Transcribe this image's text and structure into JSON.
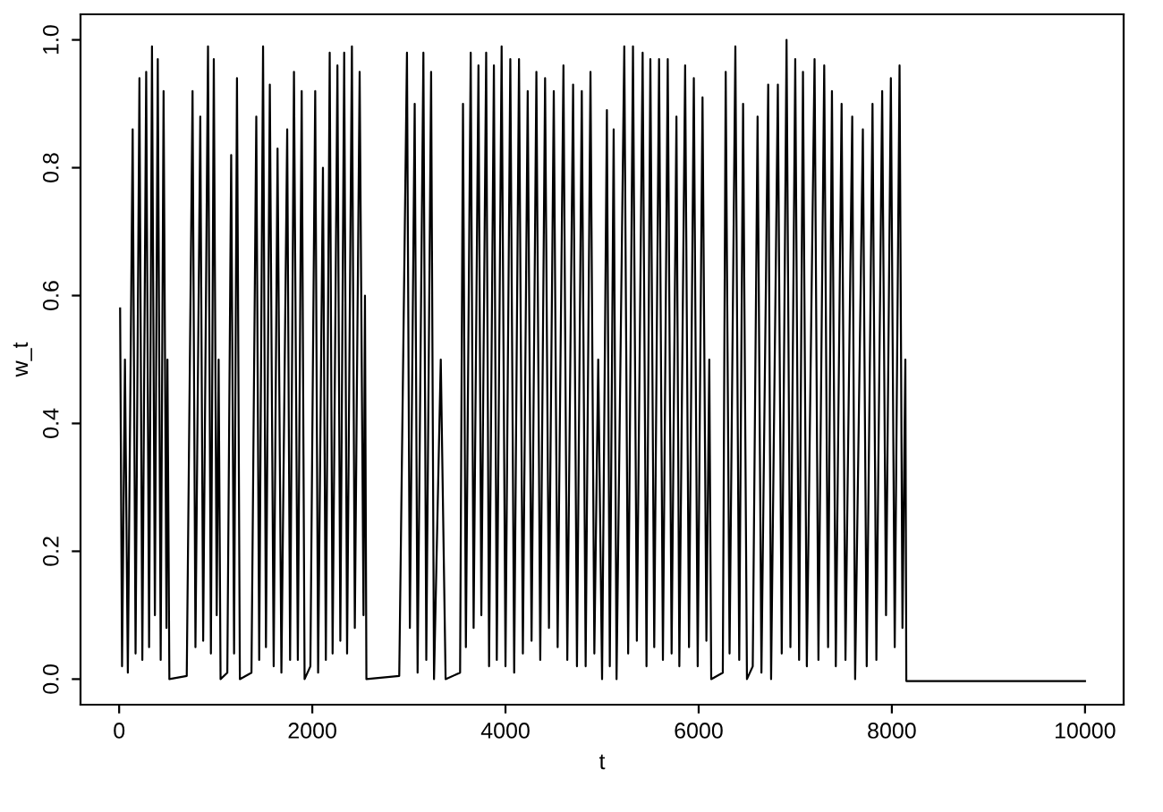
{
  "chart_data": {
    "type": "line",
    "xlabel": "t",
    "ylabel": "w_t",
    "xlim": [
      -400,
      10400
    ],
    "ylim": [
      -0.04,
      1.04
    ],
    "xticks": [
      0,
      2000,
      4000,
      6000,
      8000,
      10000
    ],
    "yticks": [
      {
        "value": 0,
        "label": "0.0"
      },
      {
        "value": 0.2,
        "label": "0.2"
      },
      {
        "value": 0.4,
        "label": "0.4"
      },
      {
        "value": 0.6,
        "label": "0.6"
      },
      {
        "value": 0.8,
        "label": "0.8"
      },
      {
        "value": 1,
        "label": "1.0"
      }
    ],
    "grid": false,
    "legend": false,
    "marker": "none",
    "line_style": "solid",
    "series": [
      {
        "color": "#000000",
        "x": [
          10,
          30,
          60,
          90,
          140,
          170,
          210,
          240,
          280,
          310,
          340,
          370,
          400,
          430,
          460,
          490,
          500,
          520,
          700,
          760,
          790,
          840,
          870,
          920,
          950,
          980,
          1010,
          1030,
          1050,
          1120,
          1160,
          1190,
          1220,
          1250,
          1370,
          1420,
          1450,
          1490,
          1520,
          1560,
          1600,
          1640,
          1680,
          1740,
          1770,
          1810,
          1850,
          1890,
          1920,
          1980,
          2030,
          2060,
          2110,
          2140,
          2180,
          2210,
          2260,
          2290,
          2330,
          2360,
          2410,
          2440,
          2490,
          2530,
          2545,
          2560,
          2900,
          2980,
          3010,
          3060,
          3090,
          3150,
          3180,
          3230,
          3260,
          3330,
          3380,
          3530,
          3560,
          3590,
          3640,
          3670,
          3720,
          3750,
          3800,
          3830,
          3880,
          3910,
          3960,
          4000,
          4050,
          4090,
          4140,
          4180,
          4230,
          4270,
          4320,
          4360,
          4410,
          4450,
          4500,
          4540,
          4600,
          4640,
          4700,
          4740,
          4790,
          4830,
          4880,
          4920,
          4960,
          5000,
          5050,
          5080,
          5120,
          5150,
          5230,
          5270,
          5320,
          5360,
          5420,
          5460,
          5500,
          5540,
          5590,
          5630,
          5680,
          5720,
          5770,
          5800,
          5860,
          5900,
          5950,
          5990,
          6040,
          6080,
          6110,
          6130,
          6250,
          6280,
          6320,
          6380,
          6420,
          6460,
          6500,
          6560,
          6610,
          6650,
          6720,
          6750,
          6820,
          6860,
          6910,
          6950,
          7000,
          7040,
          7080,
          7120,
          7200,
          7240,
          7300,
          7340,
          7380,
          7420,
          7480,
          7520,
          7590,
          7620,
          7700,
          7740,
          7800,
          7840,
          7900,
          7940,
          7990,
          8030,
          8080,
          8110,
          8140,
          8150,
          10000
        ],
        "values": [
          0.58,
          0.02,
          0.5,
          0.01,
          0.86,
          0.04,
          0.94,
          0.03,
          0.95,
          0.05,
          0.99,
          0.1,
          0.97,
          0.03,
          0.92,
          0.08,
          0.5,
          0.0,
          0.005,
          0.92,
          0.05,
          0.88,
          0.06,
          0.99,
          0.04,
          0.97,
          0.1,
          0.5,
          0.0,
          0.01,
          0.82,
          0.04,
          0.94,
          0.0,
          0.01,
          0.88,
          0.03,
          0.99,
          0.05,
          0.93,
          0.02,
          0.83,
          0.01,
          0.86,
          0.03,
          0.95,
          0.03,
          0.92,
          0.0,
          0.02,
          0.92,
          0.01,
          0.8,
          0.03,
          0.98,
          0.04,
          0.96,
          0.06,
          0.98,
          0.04,
          0.99,
          0.08,
          0.95,
          0.1,
          0.6,
          0.0,
          0.005,
          0.98,
          0.08,
          0.9,
          0.01,
          0.98,
          0.03,
          0.95,
          0.0,
          0.5,
          0.0,
          0.01,
          0.9,
          0.05,
          0.98,
          0.08,
          0.96,
          0.1,
          0.98,
          0.02,
          0.96,
          0.03,
          0.99,
          0.02,
          0.97,
          0.01,
          0.97,
          0.04,
          0.92,
          0.06,
          0.95,
          0.03,
          0.94,
          0.08,
          0.92,
          0.05,
          0.96,
          0.03,
          0.93,
          0.02,
          0.92,
          0.02,
          0.95,
          0.04,
          0.5,
          0.0,
          0.89,
          0.02,
          0.86,
          0.0,
          0.99,
          0.04,
          0.99,
          0.06,
          0.98,
          0.02,
          0.97,
          0.05,
          0.97,
          0.03,
          0.97,
          0.04,
          0.88,
          0.02,
          0.96,
          0.05,
          0.94,
          0.02,
          0.91,
          0.06,
          0.5,
          0.0,
          0.01,
          0.95,
          0.04,
          0.99,
          0.03,
          0.9,
          0.0,
          0.02,
          0.88,
          0.01,
          0.93,
          0.0,
          0.93,
          0.04,
          1.0,
          0.05,
          0.97,
          0.03,
          0.95,
          0.02,
          0.97,
          0.03,
          0.96,
          0.05,
          0.92,
          0.02,
          0.9,
          0.03,
          0.88,
          0.0,
          0.86,
          0.02,
          0.9,
          0.03,
          0.92,
          0.1,
          0.94,
          0.05,
          0.96,
          0.08,
          0.5,
          -0.003,
          -0.003
        ]
      }
    ]
  }
}
